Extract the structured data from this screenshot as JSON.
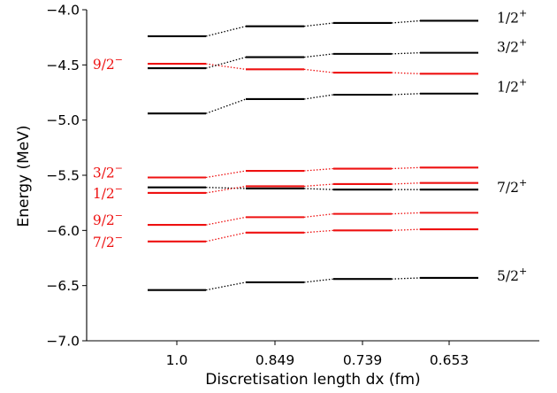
{
  "chart_data": {
    "type": "energy-level",
    "xlabel": "Discretisation length dx (fm)",
    "ylabel": "Energy (MeV)",
    "categories": [
      "1.0",
      "0.849",
      "0.739",
      "0.653"
    ],
    "ylim": [
      -7.0,
      -4.0
    ],
    "yticks": [
      -7.0,
      -6.5,
      -6.0,
      -5.5,
      -5.0,
      -4.5,
      -4.0
    ],
    "ytick_labels": [
      "−7.0",
      "−6.5",
      "−6.0",
      "−5.5",
      "−5.0",
      "−4.5",
      "−4.0"
    ],
    "grid": false,
    "colors": {
      "positive_parity": "#000000",
      "negative_parity": "#ee1111"
    },
    "series": [
      {
        "label": "1/2",
        "sign": "+",
        "color": "#000000",
        "label_side": "right",
        "values": [
          -4.24,
          -4.15,
          -4.12,
          -4.1
        ]
      },
      {
        "label": "9/2",
        "sign": "−",
        "color": "#ee1111",
        "label_side": "left",
        "values": [
          -4.49,
          -4.54,
          -4.57,
          -4.58
        ]
      },
      {
        "label": "",
        "sign": "",
        "color": "#000000",
        "label_side": "none",
        "values": [
          -4.53,
          -4.43,
          -4.4,
          -4.39
        ]
      },
      {
        "label": "3/2",
        "sign": "+",
        "color": "#000000",
        "label_side": "right",
        "values": [
          null,
          null,
          null,
          -4.39
        ]
      },
      {
        "label": "1/2",
        "sign": "+",
        "color": "#000000",
        "label_side": "right",
        "values": [
          -4.94,
          -4.81,
          -4.77,
          -4.76
        ]
      },
      {
        "label": "3/2",
        "sign": "−",
        "color": "#ee1111",
        "label_side": "left",
        "values": [
          -5.52,
          -5.46,
          -5.44,
          -5.43
        ]
      },
      {
        "label": "",
        "sign": "",
        "color": "#000000",
        "label_side": "none",
        "values": [
          -5.61,
          -5.62,
          -5.63,
          -5.63
        ]
      },
      {
        "label": "7/2",
        "sign": "+",
        "color": "#000000",
        "label_side": "right",
        "values": [
          null,
          null,
          null,
          -5.63
        ]
      },
      {
        "label": "1/2",
        "sign": "−",
        "color": "#ee1111",
        "label_side": "left",
        "values": [
          -5.66,
          -5.6,
          -5.58,
          -5.57
        ]
      },
      {
        "label": "9/2",
        "sign": "−",
        "color": "#ee1111",
        "label_side": "left",
        "values": [
          -5.95,
          -5.88,
          -5.85,
          -5.84
        ]
      },
      {
        "label": "7/2",
        "sign": "−",
        "color": "#ee1111",
        "label_side": "left",
        "values": [
          -6.1,
          -6.02,
          -6.0,
          -5.99
        ]
      },
      {
        "label": "5/2",
        "sign": "+",
        "color": "#000000",
        "label_side": "right",
        "values": [
          -6.54,
          -6.47,
          -6.44,
          -6.43
        ]
      }
    ]
  }
}
